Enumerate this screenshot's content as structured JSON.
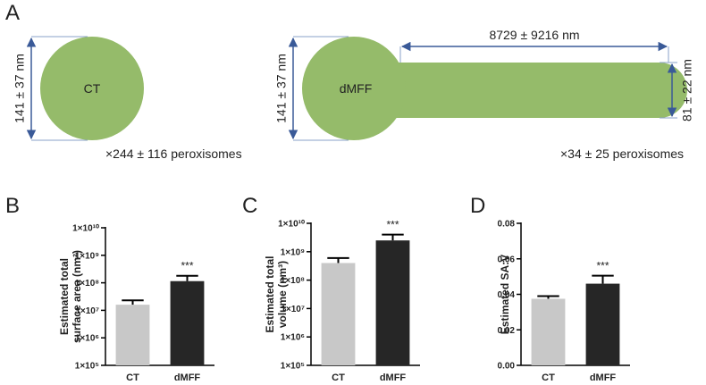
{
  "panel_a": {
    "label": "A",
    "ct": {
      "label": "CT",
      "diameter": "141 ± 37 nm",
      "count": "×244 ± 116 peroxisomes"
    },
    "dmff": {
      "label": "dMFF",
      "diameter": "141 ± 37 nm",
      "length": "8729 ± 9216 nm",
      "width": "81 ± 22 nm",
      "count": "×34 ± 25 peroxisomes"
    }
  },
  "chart_data": [
    {
      "panel": "B",
      "type": "bar",
      "y_label": [
        "Estimated total",
        "surface area (nm²)"
      ],
      "log_scale": true,
      "categories": [
        "CT",
        "dMFF"
      ],
      "values": [
        16000000,
        115000000
      ],
      "errors": [
        7000000,
        65000000
      ],
      "colors": [
        "#c8c8c8",
        "#262626"
      ],
      "ylim": [
        100000,
        10000000000
      ],
      "yticks": [
        {
          "value": 100000,
          "label": "1×10⁵"
        },
        {
          "value": 1000000,
          "label": "1×10⁶"
        },
        {
          "value": 10000000,
          "label": "1×10⁷"
        },
        {
          "value": 100000000,
          "label": "1×10⁸"
        },
        {
          "value": 1000000000,
          "label": "1×10⁹"
        },
        {
          "value": 10000000000,
          "label": "1×10¹⁰"
        }
      ],
      "annotation": {
        "category": "dMFF",
        "text": "***"
      }
    },
    {
      "panel": "C",
      "type": "bar",
      "y_label": [
        "Estimated total",
        "volume (nm³)"
      ],
      "log_scale": true,
      "categories": [
        "CT",
        "dMFF"
      ],
      "values": [
        400000000,
        2500000000
      ],
      "errors": [
        200000000,
        1500000000
      ],
      "colors": [
        "#c8c8c8",
        "#262626"
      ],
      "ylim": [
        100000,
        10000000000
      ],
      "yticks": [
        {
          "value": 100000,
          "label": "1×10⁵"
        },
        {
          "value": 1000000,
          "label": "1×10⁶"
        },
        {
          "value": 10000000,
          "label": "1×10⁷"
        },
        {
          "value": 100000000,
          "label": "1×10⁸"
        },
        {
          "value": 1000000000,
          "label": "1×10⁹"
        },
        {
          "value": 10000000000,
          "label": "1×10¹⁰"
        }
      ],
      "annotation": {
        "category": "dMFF",
        "text": "***"
      }
    },
    {
      "panel": "D",
      "type": "bar",
      "y_label": [
        "Estimated SA:V"
      ],
      "log_scale": false,
      "categories": [
        "CT",
        "dMFF"
      ],
      "values": [
        0.0375,
        0.046
      ],
      "errors": [
        0.0015,
        0.0045
      ],
      "colors": [
        "#c8c8c8",
        "#262626"
      ],
      "ylim": [
        0,
        0.08
      ],
      "yticks": [
        {
          "value": 0,
          "label": "0.00"
        },
        0.02,
        0.04,
        0.06,
        0.08
      ],
      "annotation": {
        "category": "dMFF",
        "text": "***"
      }
    }
  ]
}
